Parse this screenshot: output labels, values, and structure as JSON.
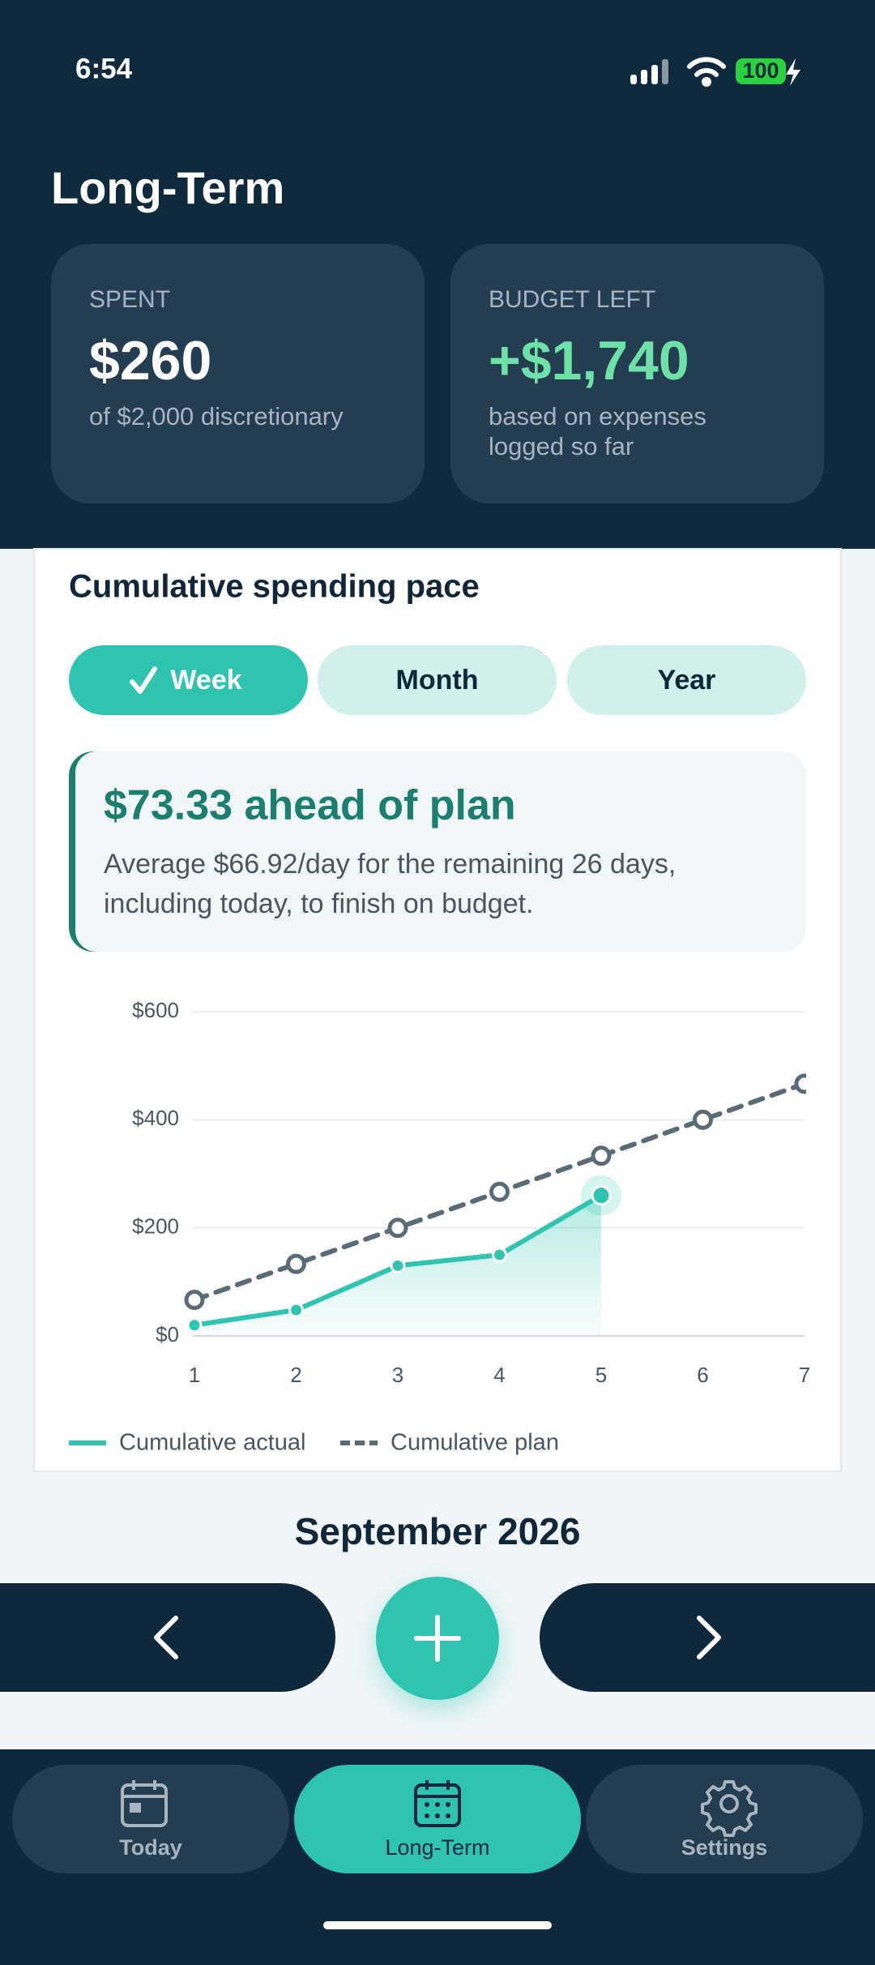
{
  "status_bar": {
    "time": "6:54",
    "battery": "100"
  },
  "header": {
    "title": "Long-Term"
  },
  "summary_cards": [
    {
      "label": "SPENT",
      "value": "$260",
      "caption": [
        "of $2,000 discretionary"
      ]
    },
    {
      "label": "BUDGET LEFT",
      "value": "+$1,740",
      "caption": [
        "based on expenses",
        "logged so far"
      ]
    }
  ],
  "period_tabs": {
    "options": [
      "Week",
      "Month",
      "Year"
    ],
    "selected": "Week"
  },
  "pace_summary": {
    "heading": "$73.33 ahead of plan",
    "body": [
      "Average $66.92/day for the remaining 26 days,",
      "including today, to finish on budget."
    ]
  },
  "chart_data": {
    "type": "line",
    "title": "Cumulative spending pace",
    "categories": [
      "1",
      "2",
      "3",
      "4",
      "5",
      "6",
      "7"
    ],
    "series": [
      {
        "name": "Cumulative actual",
        "color": "#2ec4b0",
        "values": [
          20,
          48,
          130,
          150,
          260,
          null,
          null
        ]
      },
      {
        "name": "Cumulative plan",
        "color": "#5a6b76",
        "dashed": true,
        "values": [
          66.67,
          133.33,
          200,
          266.67,
          333.33,
          400,
          466.67
        ]
      }
    ],
    "ylim": [
      0,
      600
    ],
    "yticks": [
      {
        "value": 0,
        "label": "$0"
      },
      {
        "value": 200,
        "label": "$200"
      },
      {
        "value": 400,
        "label": "$400"
      },
      {
        "value": 600,
        "label": "$600"
      }
    ],
    "grid": true,
    "legend": "bottom-left"
  },
  "month_label": "September 2026",
  "tab_bar": {
    "tabs": [
      "Today",
      "Long-Term",
      "Settings"
    ],
    "selected": "Long-Term"
  }
}
